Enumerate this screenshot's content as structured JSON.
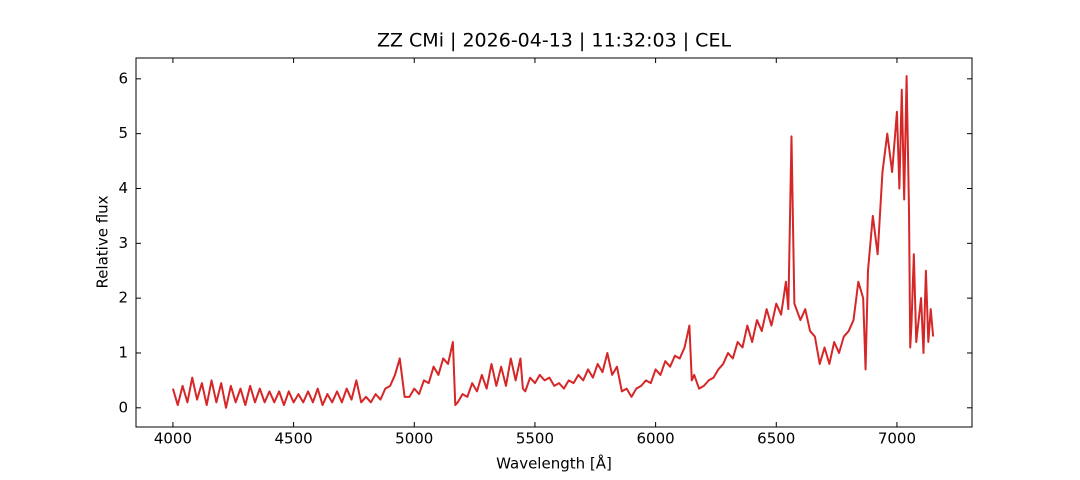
{
  "chart_data": {
    "type": "line",
    "title": "ZZ CMi | 2026-04-13 | 11:32:03 | CEL",
    "x_label": "Wavelength [Å]",
    "y_label": "Relative flux",
    "xlim": [
      3847,
      7311
    ],
    "ylim": [
      -0.35,
      6.38
    ],
    "xticks": [
      4000,
      4500,
      5000,
      5500,
      6000,
      6500,
      7000
    ],
    "yticks": [
      0,
      1,
      2,
      3,
      4,
      5,
      6
    ],
    "series": [
      {
        "color": "#d62728",
        "x": [
          4000,
          4020,
          4040,
          4060,
          4080,
          4100,
          4120,
          4140,
          4160,
          4180,
          4200,
          4220,
          4240,
          4260,
          4280,
          4300,
          4320,
          4340,
          4360,
          4380,
          4400,
          4420,
          4440,
          4460,
          4480,
          4500,
          4520,
          4540,
          4560,
          4580,
          4600,
          4620,
          4640,
          4660,
          4680,
          4700,
          4720,
          4740,
          4760,
          4780,
          4800,
          4820,
          4840,
          4860,
          4880,
          4900,
          4920,
          4940,
          4960,
          4980,
          5000,
          5020,
          5040,
          5060,
          5080,
          5100,
          5120,
          5140,
          5160,
          5170,
          5180,
          5200,
          5220,
          5240,
          5260,
          5280,
          5300,
          5320,
          5340,
          5360,
          5380,
          5400,
          5420,
          5440,
          5450,
          5460,
          5480,
          5500,
          5520,
          5540,
          5560,
          5580,
          5600,
          5620,
          5640,
          5660,
          5680,
          5700,
          5720,
          5740,
          5760,
          5780,
          5800,
          5820,
          5840,
          5860,
          5880,
          5900,
          5920,
          5940,
          5960,
          5980,
          6000,
          6020,
          6040,
          6060,
          6080,
          6100,
          6120,
          6140,
          6150,
          6160,
          6180,
          6200,
          6220,
          6240,
          6260,
          6280,
          6300,
          6320,
          6340,
          6360,
          6380,
          6400,
          6420,
          6440,
          6460,
          6480,
          6500,
          6520,
          6540,
          6550,
          6563,
          6575,
          6600,
          6620,
          6640,
          6660,
          6680,
          6700,
          6720,
          6740,
          6760,
          6780,
          6800,
          6820,
          6840,
          6860,
          6870,
          6880,
          6900,
          6920,
          6940,
          6960,
          6980,
          7000,
          7010,
          7020,
          7030,
          7040,
          7050,
          7055,
          7060,
          7070,
          7080,
          7100,
          7110,
          7120,
          7130,
          7140,
          7150
        ],
        "values": [
          0.35,
          0.05,
          0.4,
          0.1,
          0.55,
          0.15,
          0.45,
          0.05,
          0.5,
          0.1,
          0.45,
          0.0,
          0.4,
          0.1,
          0.35,
          0.05,
          0.4,
          0.1,
          0.35,
          0.1,
          0.3,
          0.1,
          0.3,
          0.05,
          0.3,
          0.1,
          0.25,
          0.1,
          0.3,
          0.1,
          0.35,
          0.05,
          0.25,
          0.1,
          0.3,
          0.1,
          0.35,
          0.15,
          0.5,
          0.1,
          0.2,
          0.1,
          0.25,
          0.15,
          0.35,
          0.4,
          0.6,
          0.9,
          0.2,
          0.2,
          0.35,
          0.25,
          0.5,
          0.45,
          0.75,
          0.6,
          0.9,
          0.8,
          1.2,
          0.05,
          0.1,
          0.25,
          0.2,
          0.45,
          0.3,
          0.6,
          0.35,
          0.8,
          0.4,
          0.75,
          0.4,
          0.9,
          0.5,
          0.9,
          0.35,
          0.3,
          0.55,
          0.45,
          0.6,
          0.5,
          0.55,
          0.4,
          0.45,
          0.35,
          0.5,
          0.45,
          0.6,
          0.5,
          0.7,
          0.55,
          0.8,
          0.65,
          1.0,
          0.6,
          0.75,
          0.3,
          0.35,
          0.2,
          0.35,
          0.4,
          0.5,
          0.45,
          0.7,
          0.6,
          0.85,
          0.75,
          0.95,
          0.9,
          1.1,
          1.5,
          0.5,
          0.6,
          0.35,
          0.4,
          0.5,
          0.55,
          0.7,
          0.8,
          1.0,
          0.9,
          1.2,
          1.1,
          1.5,
          1.2,
          1.6,
          1.4,
          1.8,
          1.5,
          1.9,
          1.7,
          2.3,
          1.8,
          4.95,
          1.9,
          1.6,
          1.8,
          1.4,
          1.3,
          0.8,
          1.1,
          0.8,
          1.2,
          1.0,
          1.3,
          1.4,
          1.6,
          2.3,
          2.0,
          0.7,
          2.5,
          3.5,
          2.8,
          4.3,
          5.0,
          4.3,
          5.4,
          4.0,
          5.8,
          3.8,
          6.05,
          3.6,
          1.1,
          1.5,
          2.8,
          1.2,
          2.0,
          1.0,
          2.5,
          1.2,
          1.8,
          1.3
        ]
      }
    ]
  }
}
